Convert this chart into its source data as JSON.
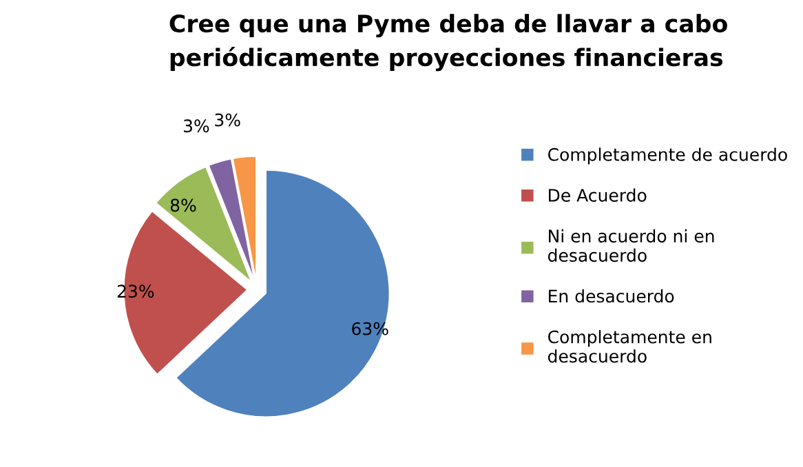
{
  "chart_data": {
    "type": "pie",
    "title": "Cree que una Pyme deba de llavar a cabo\nperiódicamente proyecciones financieras",
    "categories": [
      "Completamente de acuerdo",
      "De Acuerdo",
      "Ni en acuerdo ni en\ndesacuerdo",
      "En desacuerdo",
      "Completamente en\ndesacuerdo"
    ],
    "values": [
      63,
      23,
      8,
      3,
      3
    ],
    "colors": [
      "#4f81bd",
      "#c0504d",
      "#9bbb59",
      "#8064a2",
      "#f79646"
    ],
    "value_labels": [
      "63%",
      "23%",
      "8%",
      "3%",
      "3%"
    ],
    "legend": "right"
  }
}
